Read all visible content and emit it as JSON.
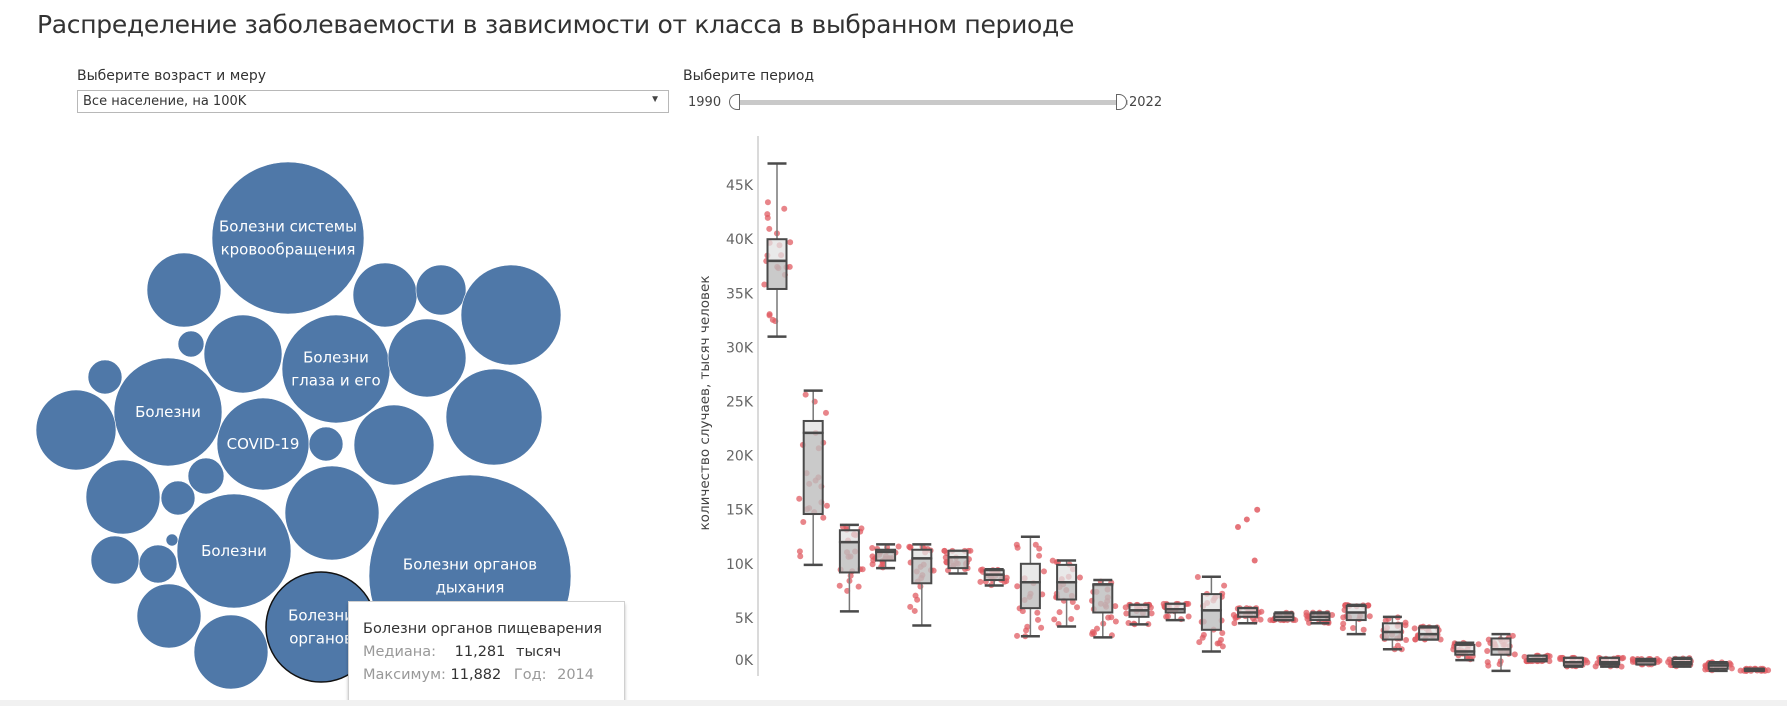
{
  "title": "Распределение заболеваемости в зависимости от класса в выбранном периоде",
  "filters": {
    "measure_label": "Выберите возраст и меру",
    "measure_value": "Все население, на 100K",
    "period_label": "Выберите период",
    "period_start": "1990",
    "period_end": "2022"
  },
  "colors": {
    "bubble": "#4f78a8",
    "point": "#e05c63",
    "box_fill": "#bdbdbd",
    "box_stroke": "#4a4a4a",
    "axis": "#b0b0b0"
  },
  "bubbles": [
    {
      "label": "Болезни системы|кровообращения",
      "size": 76
    },
    {
      "label": "",
      "size": 37
    },
    {
      "label": "",
      "size": 13
    },
    {
      "label": "",
      "size": 39
    },
    {
      "label": "Болезни|глаза и его",
      "size": 54
    },
    {
      "label": "",
      "size": 32
    },
    {
      "label": "",
      "size": 25
    },
    {
      "label": "",
      "size": 50
    },
    {
      "label": "",
      "size": 39
    },
    {
      "label": "",
      "size": 48
    },
    {
      "label": "",
      "size": 17
    },
    {
      "label": "Болезни",
      "size": 54
    },
    {
      "label": "",
      "size": 40
    },
    {
      "label": "COVID-19",
      "size": 46
    },
    {
      "label": "",
      "size": 17
    },
    {
      "label": "",
      "size": 40
    },
    {
      "label": "",
      "size": 37
    },
    {
      "label": "",
      "size": 18
    },
    {
      "label": "",
      "size": 17
    },
    {
      "label": "",
      "size": 47
    },
    {
      "label": "",
      "size": 24
    },
    {
      "label": "",
      "size": 19
    },
    {
      "label": "",
      "size": 6
    },
    {
      "label": "Болезни",
      "size": 57
    },
    {
      "label": "Болезни органов|дыхания",
      "size": 101
    },
    {
      "label": "",
      "size": 32
    },
    {
      "label": "",
      "size": 37
    },
    {
      "label": "Болезни|органов",
      "size": 55,
      "selected": true
    }
  ],
  "tooltip": {
    "title": "Болезни органов пищеварения",
    "median_label": "Медиана:",
    "median_value": "11,281",
    "median_unit": "тысяч",
    "max_label": "Максимум:",
    "max_value": "11,882",
    "year_label": "Год:",
    "year_value": "2014"
  },
  "chart_data": {
    "type": "boxplot",
    "title": "",
    "ylabel": "количество случаев, тысяч человек",
    "ylim": [
      0,
      47000
    ],
    "yticks": [
      "0K",
      "5K",
      "10K",
      "15K",
      "20K",
      "25K",
      "30K",
      "35K",
      "40K",
      "45K"
    ],
    "ytick_values": [
      0,
      5000,
      10000,
      15000,
      20000,
      25000,
      30000,
      35000,
      40000,
      45000
    ],
    "grid": false,
    "boxes": [
      {
        "min": 31000,
        "q1": 35400,
        "median": 38000,
        "q3": 40000,
        "max": 47000,
        "outliers": []
      },
      {
        "min": 9900,
        "q1": 14600,
        "median": 22100,
        "q3": 23200,
        "max": 26000,
        "outliers": []
      },
      {
        "min": 5600,
        "q1": 9200,
        "median": 12000,
        "q3": 13100,
        "max": 13600,
        "outliers": []
      },
      {
        "min": 9600,
        "q1": 10300,
        "median": 11100,
        "q3": 11300,
        "max": 11800,
        "outliers": []
      },
      {
        "min": 4300,
        "q1": 8200,
        "median": 10500,
        "q3": 11300,
        "max": 11800,
        "outliers": []
      },
      {
        "min": 9100,
        "q1": 9600,
        "median": 10600,
        "q3": 11200,
        "max": 11200,
        "outliers": []
      },
      {
        "min": 8000,
        "q1": 8500,
        "median": 9000,
        "q3": 9400,
        "max": 9500,
        "outliers": []
      },
      {
        "min": 3300,
        "q1": 5900,
        "median": 8300,
        "q3": 10000,
        "max": 12500,
        "outliers": []
      },
      {
        "min": 4200,
        "q1": 6700,
        "median": 8300,
        "q3": 9900,
        "max": 10300,
        "outliers": []
      },
      {
        "min": 3200,
        "q1": 5500,
        "median": 8100,
        "q3": 8100,
        "max": 8500,
        "outliers": []
      },
      {
        "min": 4400,
        "q1": 5100,
        "median": 5700,
        "q3": 6200,
        "max": 6200,
        "outliers": []
      },
      {
        "min": 4800,
        "q1": 5500,
        "median": 5800,
        "q3": 6300,
        "max": 6300,
        "outliers": []
      },
      {
        "min": 1900,
        "q1": 3900,
        "median": 5700,
        "q3": 7200,
        "max": 8800,
        "outliers": []
      },
      {
        "min": 4500,
        "q1": 5100,
        "median": 5500,
        "q3": 5900,
        "max": 5900,
        "outliers": [
          15000,
          14100,
          13400,
          10300
        ]
      },
      {
        "min": 4800,
        "q1": 4800,
        "median": 5100,
        "q3": 5400,
        "max": 5500,
        "outliers": []
      },
      {
        "min": 4500,
        "q1": 4800,
        "median": 5100,
        "q3": 5400,
        "max": 5500,
        "outliers": []
      },
      {
        "min": 3500,
        "q1": 4800,
        "median": 5500,
        "q3": 6100,
        "max": 6200,
        "outliers": []
      },
      {
        "min": 2100,
        "q1": 3000,
        "median": 3700,
        "q3": 4500,
        "max": 5100,
        "outliers": []
      },
      {
        "min": 3000,
        "q1": 3000,
        "median": 3500,
        "q3": 4100,
        "max": 4200,
        "outliers": []
      },
      {
        "min": 1100,
        "q1": 1600,
        "median": 1900,
        "q3": 2500,
        "max": 2700,
        "outliers": []
      },
      {
        "min": 100,
        "q1": 1600,
        "median": 2100,
        "q3": 3100,
        "max": 3500,
        "outliers": []
      },
      {
        "min": 1000,
        "q1": 1000,
        "median": 1200,
        "q3": 1500,
        "max": 1500,
        "outliers": []
      },
      {
        "min": 500,
        "q1": 600,
        "median": 900,
        "q3": 1300,
        "max": 1300,
        "outliers": []
      },
      {
        "min": 500,
        "q1": 700,
        "median": 900,
        "q3": 1300,
        "max": 1300,
        "outliers": []
      },
      {
        "min": 700,
        "q1": 700,
        "median": 1000,
        "q3": 1200,
        "max": 1200,
        "outliers": []
      },
      {
        "min": 500,
        "q1": 700,
        "median": 900,
        "q3": 1200,
        "max": 1300,
        "outliers": []
      },
      {
        "min": 100,
        "q1": 300,
        "median": 600,
        "q3": 800,
        "max": 900,
        "outliers": []
      },
      {
        "min": 100,
        "q1": 100,
        "median": 200,
        "q3": 300,
        "max": 300,
        "outliers": []
      }
    ]
  }
}
